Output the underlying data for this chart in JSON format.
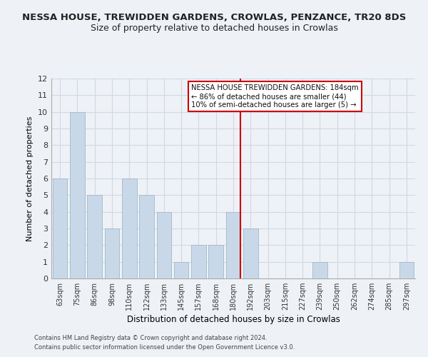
{
  "title": "NESSA HOUSE, TREWIDDEN GARDENS, CROWLAS, PENZANCE, TR20 8DS",
  "subtitle": "Size of property relative to detached houses in Crowlas",
  "xlabel": "Distribution of detached houses by size in Crowlas",
  "ylabel": "Number of detached properties",
  "bar_labels": [
    "63sqm",
    "75sqm",
    "86sqm",
    "98sqm",
    "110sqm",
    "122sqm",
    "133sqm",
    "145sqm",
    "157sqm",
    "168sqm",
    "180sqm",
    "192sqm",
    "203sqm",
    "215sqm",
    "227sqm",
    "239sqm",
    "250sqm",
    "262sqm",
    "274sqm",
    "285sqm",
    "297sqm"
  ],
  "bar_values": [
    6,
    10,
    5,
    3,
    6,
    5,
    4,
    1,
    2,
    2,
    4,
    3,
    0,
    0,
    0,
    1,
    0,
    0,
    0,
    0,
    1
  ],
  "bar_color": "#c8d8e8",
  "bar_edge_color": "#a8bece",
  "reference_line_x": 10,
  "ylim": [
    0,
    12
  ],
  "yticks": [
    0,
    1,
    2,
    3,
    4,
    5,
    6,
    7,
    8,
    9,
    10,
    11,
    12
  ],
  "annotation_title": "NESSA HOUSE TREWIDDEN GARDENS: 184sqm",
  "annotation_line1": "← 86% of detached houses are smaller (44)",
  "annotation_line2": "10% of semi-detached houses are larger (5) →",
  "footer_line1": "Contains HM Land Registry data © Crown copyright and database right 2024.",
  "footer_line2": "Contains public sector information licensed under the Open Government Licence v3.0.",
  "grid_color": "#d0d8e4",
  "vline_color": "#cc0000",
  "bg_color": "#eef2f7"
}
